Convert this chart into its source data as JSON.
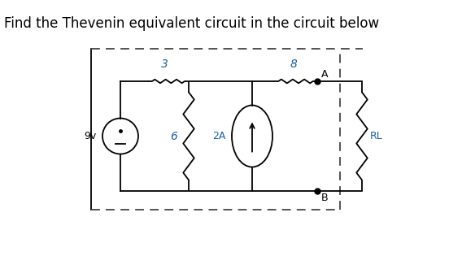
{
  "title": "Find the Thevenin equivalent circuit in the circuit below",
  "title_fontsize": 12,
  "bg_color": "#ffffff",
  "line_color": "#000000",
  "label_color": "#1a5fa8",
  "dashed_color": "#444444",
  "resistor_3_label": "3",
  "resistor_6_label": "6",
  "resistor_8_label": "8",
  "resistor_rl_label": "RL",
  "current_source_label": "2A",
  "voltage_source_label": "9v",
  "node_A_label": "A",
  "node_B_label": "B",
  "figw": 5.68,
  "figh": 3.15,
  "dpi": 100
}
